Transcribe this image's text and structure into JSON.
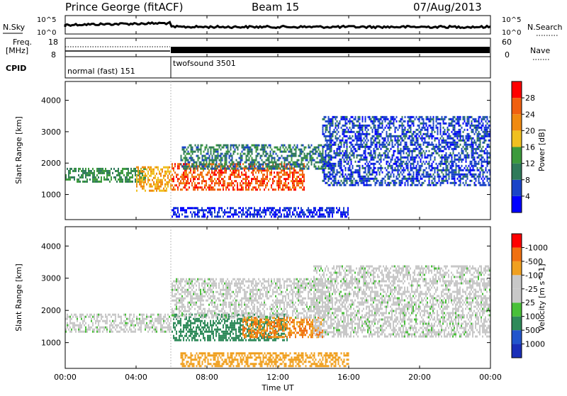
{
  "header": {
    "station": "Prince George (fitACF)",
    "beam": "Beam 15",
    "date": "07/Aug/2013"
  },
  "noise_panel": {
    "left_label": "N.Sky",
    "left_ticks": [
      "10^5",
      "10^0"
    ],
    "right_ticks": [
      "10^5",
      "10^0"
    ],
    "right_label": "N.Search"
  },
  "freq_panel": {
    "left_label_line1": "Freq.",
    "left_label_line2": "[MHz]",
    "left_ticks": [
      "18",
      "8"
    ],
    "right_ticks": [
      "60",
      "0"
    ],
    "right_label": "Nave"
  },
  "cpid_panel": {
    "label": "CPID",
    "segments": [
      {
        "name": "normal (fast) 151",
        "start_hour": 0,
        "end_hour": 6
      },
      {
        "name": "twofsound 3501",
        "start_hour": 6,
        "end_hour": 24
      }
    ]
  },
  "x_axis": {
    "label": "Time UT",
    "ticks": [
      "00:00",
      "04:00",
      "08:00",
      "12:00",
      "16:00",
      "20:00",
      "00:00"
    ],
    "range_hours": [
      0,
      24
    ]
  },
  "chart_data": [
    {
      "type": "heatmap",
      "title": "",
      "ylabel": "Slant Range [km]",
      "yticks": [
        "1000",
        "2000",
        "3000",
        "4000"
      ],
      "ylim": [
        200,
        4600
      ],
      "colorbar": {
        "label": "Power [dB]",
        "ticks": [
          "4",
          "8",
          "12",
          "16",
          "20",
          "24",
          "28"
        ],
        "colors": [
          "#0000ff",
          "#1a44c8",
          "#2f7a5a",
          "#3c9a3c",
          "#f0c020",
          "#f08a10",
          "#f06010",
          "#ff0000"
        ]
      },
      "bands": [
        {
          "t_start": 0.0,
          "t_end": 4.5,
          "r_low": 1400,
          "r_high": 1850,
          "level": 12
        },
        {
          "t_start": 4.0,
          "t_end": 6.0,
          "r_low": 1100,
          "r_high": 1900,
          "level": 20
        },
        {
          "t_start": 6.0,
          "t_end": 13.5,
          "r_low": 1150,
          "r_high": 2000,
          "level": 26
        },
        {
          "t_start": 6.5,
          "t_end": 15.0,
          "r_low": 1800,
          "r_high": 2600,
          "level": 10
        },
        {
          "t_start": 14.5,
          "t_end": 24.0,
          "r_low": 1300,
          "r_high": 3500,
          "level": 6
        },
        {
          "t_start": 6.0,
          "t_end": 16.0,
          "r_low": 300,
          "r_high": 600,
          "level": 4
        }
      ]
    },
    {
      "type": "heatmap",
      "title": "",
      "ylabel": "Slant Range [km]",
      "yticks": [
        "1000",
        "2000",
        "3000",
        "4000"
      ],
      "ylim": [
        200,
        4600
      ],
      "colorbar": {
        "label": "Velocity [m s^-1]",
        "ticks": [
          "1000",
          "500",
          "100",
          "25",
          "-25",
          "-100",
          "-500",
          "-1000"
        ],
        "colors": [
          "#1a2fb8",
          "#2255cc",
          "#2f8a5a",
          "#49c039",
          "#c8c8c8",
          "#c8c8c8",
          "#f0a020",
          "#f07010",
          "#ff0000"
        ]
      },
      "bands": [
        {
          "t_start": 0.0,
          "t_end": 6.0,
          "r_low": 1350,
          "r_high": 1900,
          "velocity": 0
        },
        {
          "t_start": 6.0,
          "t_end": 12.5,
          "r_low": 1100,
          "r_high": 1900,
          "velocity": 100
        },
        {
          "t_start": 10.0,
          "t_end": 14.5,
          "r_low": 1200,
          "r_high": 1800,
          "velocity": -300
        },
        {
          "t_start": 6.0,
          "t_end": 15.0,
          "r_low": 1800,
          "r_high": 3000,
          "velocity": 0
        },
        {
          "t_start": 14.0,
          "t_end": 24.0,
          "r_low": 1200,
          "r_high": 3400,
          "velocity": 0
        },
        {
          "t_start": 6.5,
          "t_end": 16.0,
          "r_low": 300,
          "r_high": 700,
          "velocity": -100
        }
      ]
    }
  ]
}
